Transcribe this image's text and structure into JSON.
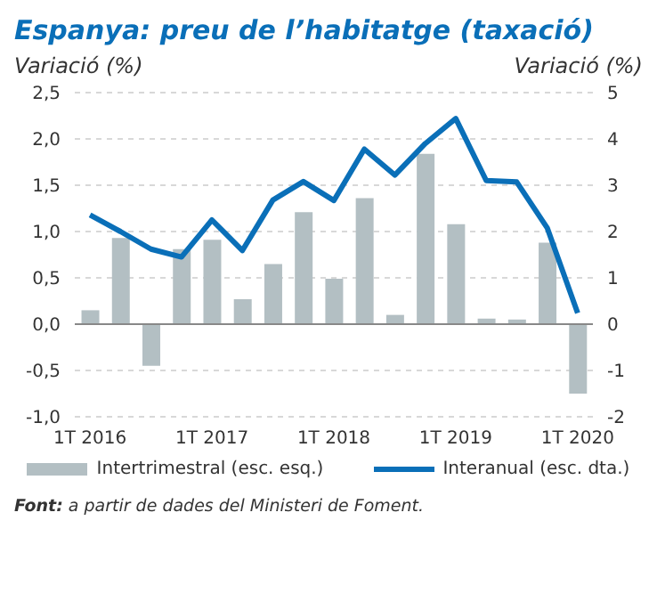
{
  "chart_data": {
    "type": "bar",
    "title": "Espanya: preu de l’habitatge (taxació)",
    "ylabel": "Variació (%)",
    "y2label": "Variació (%)",
    "categories": [
      "1T 2016",
      null,
      null,
      null,
      "1T 2017",
      null,
      null,
      null,
      "1T 2018",
      null,
      null,
      null,
      "1T 2019",
      null,
      null,
      null,
      "1T 2020"
    ],
    "series": [
      {
        "name": "Intertrimestral (esc. esq.)",
        "color": "#b3bfc3",
        "values": [
          0.15,
          0.93,
          -0.45,
          0.81,
          0.91,
          0.27,
          0.65,
          1.21,
          0.49,
          1.36,
          0.1,
          1.84,
          1.08,
          0.06,
          0.05,
          0.88,
          -0.75
        ]
      },
      {
        "name": "Interanual (esc. dta.)",
        "type": "line",
        "axis": "y2",
        "color": "#0a6fb8",
        "values": [
          2.36,
          2.0,
          1.62,
          1.45,
          2.25,
          1.59,
          2.68,
          3.08,
          2.67,
          3.78,
          3.22,
          3.9,
          4.44,
          3.1,
          3.07,
          2.08,
          0.24
        ]
      }
    ],
    "ylim": [
      -1,
      2.5
    ],
    "yticks": [
      {
        "value": -1,
        "label": "-1,0"
      },
      {
        "value": -0.5,
        "label": "-0,5"
      },
      {
        "value": 0,
        "label": "0,0"
      },
      {
        "value": 0.5,
        "label": "0,5"
      },
      {
        "value": 1,
        "label": "1,0"
      },
      {
        "value": 1.5,
        "label": "1,5"
      },
      {
        "value": 2,
        "label": "2,0"
      },
      {
        "value": 2.5,
        "label": "2,5"
      }
    ],
    "y2lim": [
      -2,
      5
    ],
    "y2ticks": [
      -2,
      -1,
      0,
      1,
      2,
      3,
      4,
      5
    ],
    "grid": "y",
    "legend": "bottom",
    "marker": "none",
    "line_style": "solid",
    "annotations": [
      "Font: a partir de dades del Ministeri de Foment."
    ]
  }
}
